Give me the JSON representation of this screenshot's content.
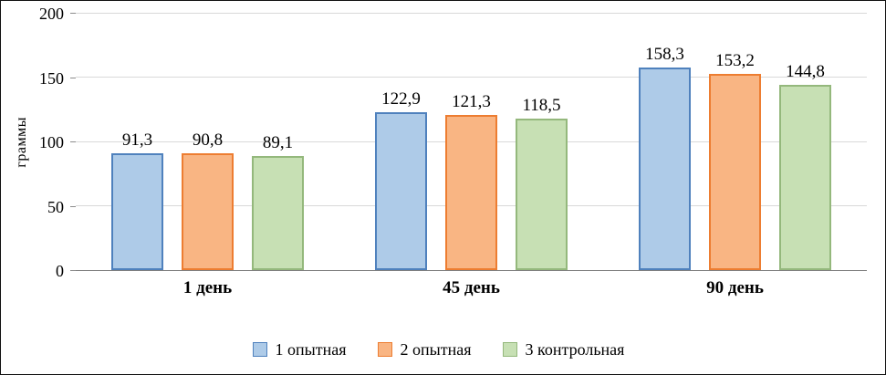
{
  "chart_data": {
    "type": "bar",
    "title": "",
    "ylabel": "граммы",
    "xlabel": "",
    "ylim": [
      0,
      200
    ],
    "yticks": [
      0,
      50,
      100,
      150,
      200
    ],
    "grid": "horizontal",
    "legend_position": "bottom",
    "categories": [
      "1 день",
      "45 день",
      "90 день"
    ],
    "series": [
      {
        "name": "1 опытная",
        "values": [
          91.3,
          122.9,
          158.3
        ],
        "labels": [
          "91,3",
          "122,9",
          "158,3"
        ],
        "fill": "#aecbe8",
        "border": "#4f81bd"
      },
      {
        "name": "2 опытная",
        "values": [
          90.8,
          121.3,
          153.2
        ],
        "labels": [
          "90,8",
          "121,3",
          "153,2"
        ],
        "fill": "#f9b583",
        "border": "#ed7d31"
      },
      {
        "name": "3 контрольная",
        "values": [
          89.1,
          118.5,
          144.8
        ],
        "labels": [
          "89,1",
          "118,5",
          "144,8"
        ],
        "fill": "#c7e0b4",
        "border": "#94b87c"
      }
    ]
  }
}
